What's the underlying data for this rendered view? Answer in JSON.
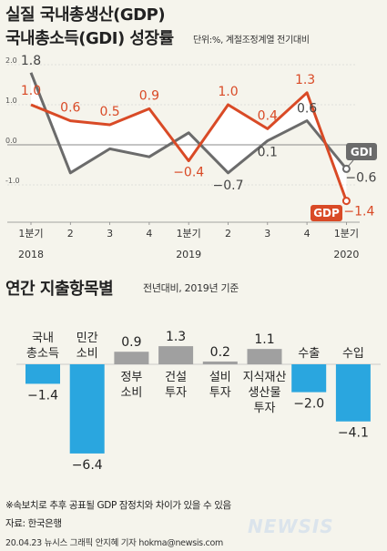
{
  "title_line1": "실질 국내총생산(GDP)",
  "title_line2": "국내총소득(GDI) 성장률",
  "unit": "단위:%, 계절조정계열 전기대비",
  "section2_title": "연간 지출항목별",
  "section2_subtitle": "전년대비, 2019년 기준",
  "note": "※속보치로 추후 공표될 GDP 잠정치와 차이가 있을 수 있음",
  "source": "자료: 한국은행",
  "credit": "20.04.23 뉴시스 그래픽 안지혜 기자 hokma@newsis.com",
  "logo": "NEWSIS",
  "colors": {
    "gdp": "#d94a26",
    "gdi": "#6b6b6b",
    "positive_bar": "#a0a0a0",
    "negative_bar": "#2aa6df",
    "area": "#ffffff"
  },
  "chart_data": [
    {
      "type": "line",
      "x": [
        "1분기",
        "2",
        "3",
        "4",
        "1분기",
        "2",
        "3",
        "4",
        "1분기"
      ],
      "year_labels": [
        {
          "index": 0,
          "label": "2018"
        },
        {
          "index": 4,
          "label": "2019"
        },
        {
          "index": 8,
          "label": "2020"
        }
      ],
      "ylim": [
        -1.4,
        2.0
      ],
      "yticks": [
        2.0,
        1.0,
        0.0,
        -1.0
      ],
      "ytick_labels": [
        "2.0",
        "1.0",
        "0.0",
        "-1.0"
      ],
      "series": [
        {
          "name": "GDP",
          "values": [
            1.0,
            0.6,
            0.5,
            0.9,
            -0.4,
            1.0,
            0.4,
            1.3,
            -1.4
          ],
          "labels": [
            "1.0",
            "0.6",
            "0.5",
            "0.9",
            "−0.4",
            "1.0",
            "0.4",
            "1.3",
            "−1.4"
          ]
        },
        {
          "name": "GDI",
          "values": [
            1.8,
            -0.7,
            -0.1,
            -0.3,
            0.3,
            -0.7,
            0.1,
            0.6,
            -0.6
          ],
          "labels": [
            "1.8",
            "",
            "",
            "",
            "",
            "−0.7",
            "0.1",
            "0.6",
            "−0.6"
          ]
        }
      ]
    },
    {
      "type": "bar",
      "categories": [
        "국내 총소득",
        "민간 소비",
        "정부 소비",
        "건설 투자",
        "설비 투자",
        "지식재산 생산물 투자",
        "수출",
        "수입"
      ],
      "category_lines": [
        [
          "국내",
          "총소득"
        ],
        [
          "민간",
          "소비"
        ],
        [
          "정부",
          "소비"
        ],
        [
          "건설",
          "투자"
        ],
        [
          "설비",
          "투자"
        ],
        [
          "지식재산",
          "생산물",
          "투자"
        ],
        [
          "수출"
        ],
        [
          "수입"
        ]
      ],
      "values": [
        -1.4,
        -6.4,
        0.9,
        1.3,
        0.2,
        1.1,
        -2.0,
        -4.1
      ],
      "labels": [
        "−1.4",
        "−6.4",
        "0.9",
        "1.3",
        "0.2",
        "1.1",
        "−2.0",
        "−4.1"
      ]
    }
  ]
}
